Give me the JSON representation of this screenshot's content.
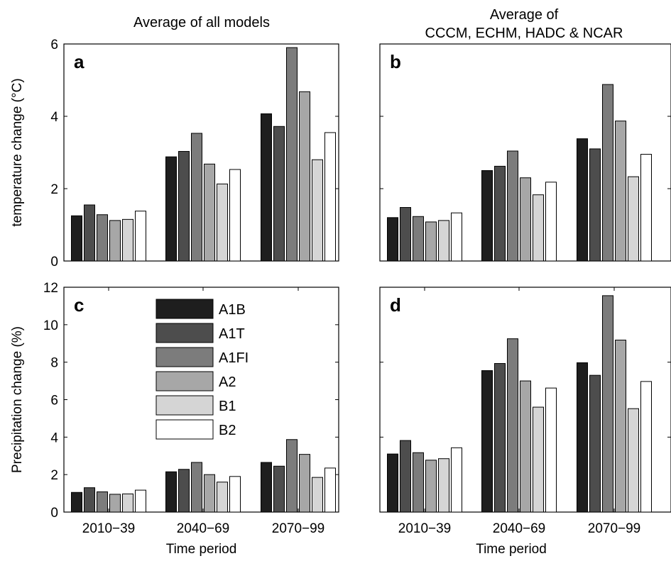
{
  "column_titles": {
    "left": "Average of all models",
    "right_line1": "Average of",
    "right_line2": "CCCM, ECHM, HADC & NCAR"
  },
  "colors": {
    "A1B": "#1e1e1e",
    "A1T": "#4d4d4d",
    "A1FI": "#7c7c7c",
    "A2": "#a7a7a7",
    "B1": "#d5d5d5",
    "B2": "#ffffff"
  },
  "chart_data": [
    {
      "type": "bar",
      "panel": "a",
      "ylabel": "temperature change (°C)",
      "xlabel": "",
      "ylim": [
        0,
        6
      ],
      "yticks": [
        "0",
        "2",
        "4",
        "6"
      ],
      "categories": [
        "2010–39",
        "2040–69",
        "2070–99"
      ],
      "series": [
        {
          "name": "A1B",
          "values": [
            1.25,
            2.88,
            4.07
          ]
        },
        {
          "name": "A1T",
          "values": [
            1.55,
            3.03,
            3.72
          ]
        },
        {
          "name": "A1FI",
          "values": [
            1.28,
            3.53,
            5.9
          ]
        },
        {
          "name": "A2",
          "values": [
            1.12,
            2.68,
            4.68
          ]
        },
        {
          "name": "B1",
          "values": [
            1.15,
            2.13,
            2.8
          ]
        },
        {
          "name": "B2",
          "values": [
            1.38,
            2.53,
            3.55
          ]
        }
      ],
      "legend": "none",
      "grid": false
    },
    {
      "type": "bar",
      "panel": "b",
      "ylabel": "",
      "xlabel": "",
      "ylim": [
        0,
        6
      ],
      "yticks": [],
      "categories": [
        "2010–39",
        "2040–69",
        "2070–99"
      ],
      "series": [
        {
          "name": "A1B",
          "values": [
            1.2,
            2.5,
            3.38
          ]
        },
        {
          "name": "A1T",
          "values": [
            1.48,
            2.62,
            3.1
          ]
        },
        {
          "name": "A1FI",
          "values": [
            1.23,
            3.04,
            4.88
          ]
        },
        {
          "name": "A2",
          "values": [
            1.08,
            2.3,
            3.87
          ]
        },
        {
          "name": "B1",
          "values": [
            1.12,
            1.83,
            2.33
          ]
        },
        {
          "name": "B2",
          "values": [
            1.33,
            2.18,
            2.95
          ]
        }
      ],
      "legend": "none",
      "grid": false
    },
    {
      "type": "bar",
      "panel": "c",
      "ylabel": "Precipitation change (%)",
      "xlabel": "Time period",
      "ylim": [
        0,
        12
      ],
      "yticks": [
        "0",
        "2",
        "4",
        "6",
        "8",
        "10",
        "12"
      ],
      "categories": [
        "2010−39",
        "2040−69",
        "2070−99"
      ],
      "series": [
        {
          "name": "A1B",
          "values": [
            1.05,
            2.15,
            2.65
          ]
        },
        {
          "name": "A1T",
          "values": [
            1.3,
            2.28,
            2.45
          ]
        },
        {
          "name": "A1FI",
          "values": [
            1.08,
            2.65,
            3.87
          ]
        },
        {
          "name": "A2",
          "values": [
            0.95,
            2.0,
            3.08
          ]
        },
        {
          "name": "B1",
          "values": [
            0.97,
            1.6,
            1.85
          ]
        },
        {
          "name": "B2",
          "values": [
            1.17,
            1.9,
            2.35
          ]
        }
      ],
      "legend": "top-center",
      "grid": false
    },
    {
      "type": "bar",
      "panel": "d",
      "ylabel": "",
      "xlabel": "Time period",
      "ylim": [
        0,
        12
      ],
      "yticks": [],
      "categories": [
        "2010−39",
        "2040−69",
        "2070−99"
      ],
      "series": [
        {
          "name": "A1B",
          "values": [
            3.1,
            7.55,
            7.97
          ]
        },
        {
          "name": "A1T",
          "values": [
            3.82,
            7.93,
            7.3
          ]
        },
        {
          "name": "A1FI",
          "values": [
            3.17,
            9.25,
            11.55
          ]
        },
        {
          "name": "A2",
          "values": [
            2.77,
            7.0,
            9.18
          ]
        },
        {
          "name": "B1",
          "values": [
            2.85,
            5.6,
            5.52
          ]
        },
        {
          "name": "B2",
          "values": [
            3.43,
            6.62,
            6.97
          ]
        }
      ],
      "legend": "none",
      "grid": false
    }
  ]
}
